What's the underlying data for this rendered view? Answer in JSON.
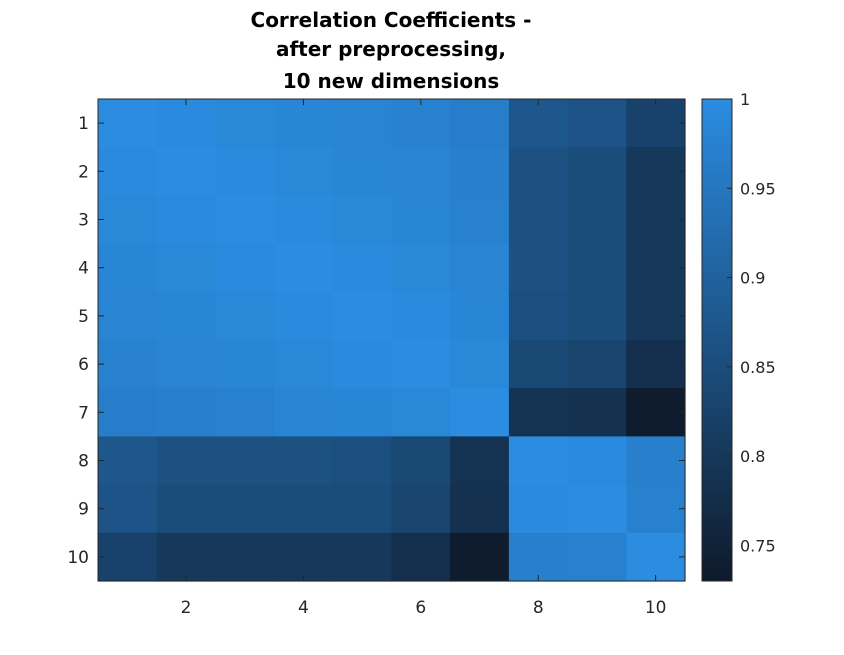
{
  "chart_data": {
    "type": "heatmap",
    "title": [
      "Correlation Coefficients -",
      "after preprocessing,",
      "10 new dimensions"
    ],
    "x_ticks": [
      2,
      4,
      6,
      8,
      10
    ],
    "y_ticks": [
      1,
      2,
      3,
      4,
      5,
      6,
      7,
      8,
      9,
      10
    ],
    "rows": [
      1,
      2,
      3,
      4,
      5,
      6,
      7,
      8,
      9,
      10
    ],
    "cols": [
      1,
      2,
      3,
      4,
      5,
      6,
      7,
      8,
      9,
      10
    ],
    "values": [
      [
        1.0,
        0.995,
        0.99,
        0.985,
        0.98,
        0.975,
        0.965,
        0.875,
        0.865,
        0.825
      ],
      [
        0.995,
        1.0,
        0.995,
        0.99,
        0.985,
        0.98,
        0.97,
        0.86,
        0.85,
        0.8
      ],
      [
        0.99,
        0.995,
        1.0,
        0.995,
        0.99,
        0.985,
        0.975,
        0.86,
        0.85,
        0.8
      ],
      [
        0.985,
        0.99,
        0.995,
        1.0,
        0.995,
        0.99,
        0.98,
        0.86,
        0.85,
        0.8
      ],
      [
        0.98,
        0.985,
        0.99,
        0.995,
        1.0,
        0.995,
        0.985,
        0.855,
        0.85,
        0.8
      ],
      [
        0.975,
        0.98,
        0.985,
        0.99,
        0.995,
        1.0,
        0.99,
        0.84,
        0.83,
        0.78
      ],
      [
        0.965,
        0.97,
        0.975,
        0.98,
        0.985,
        0.99,
        1.0,
        0.79,
        0.785,
        0.735
      ],
      [
        0.875,
        0.86,
        0.86,
        0.86,
        0.855,
        0.84,
        0.79,
        1.0,
        0.995,
        0.97
      ],
      [
        0.865,
        0.85,
        0.85,
        0.85,
        0.85,
        0.83,
        0.785,
        0.995,
        1.0,
        0.975
      ],
      [
        0.825,
        0.8,
        0.8,
        0.8,
        0.8,
        0.78,
        0.735,
        0.97,
        0.975,
        1.0
      ]
    ],
    "colorbar": {
      "min": 0.73,
      "max": 1.0,
      "ticks": [
        0.75,
        0.8,
        0.85,
        0.9,
        0.95,
        1
      ],
      "tick_labels": [
        "0.75",
        "0.8",
        "0.85",
        "0.9",
        "0.95",
        "1"
      ],
      "color_low": "#0e1a2b",
      "color_high": "#2b8ce0"
    },
    "xlabel": "",
    "ylabel": ""
  }
}
